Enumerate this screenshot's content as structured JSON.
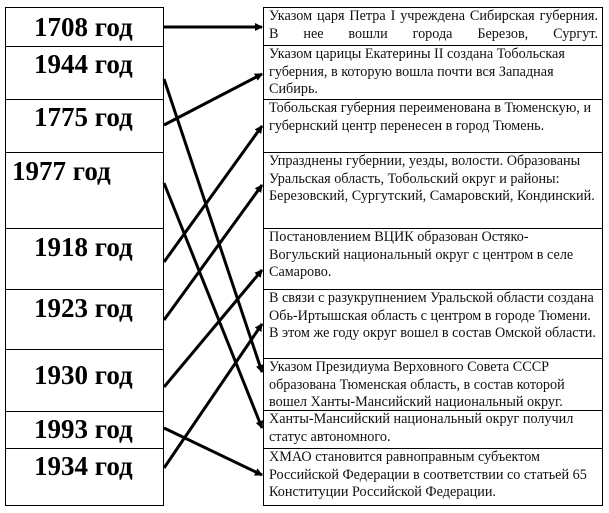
{
  "years": [
    "1708 год",
    "1944 год",
    "1775 год",
    "1977 год",
    "1918 год",
    "1923 год",
    "1930 год",
    "1993 год",
    "1934 год"
  ],
  "events": [
    "Указом царя Петра I учреждена Сибирская губерния. В нее вошли города Березов, Сургут.",
    "Указом царицы Екатерины II создана Тобольская губерния, в которую вошла почти вся Западная Сибирь.",
    "Тобольская губерния переименована в Тюменскую, и губернский центр перенесен в город Тюмень.",
    "Упразднены губернии, уезды, волости. Образованы Уральская область, Тобольский округ и районы: Березовский, Сургутский, Самаровский, Кондинский.",
    "Постановлением ВЦИК образован Остяко-Вогульский национальный округ с центром в селе Самарово.",
    "В связи с разукрупнением Уральской области создана Обь-Иртышская область с центром в городе Тюмени. В этом же году округ вошел в состав Омской области.",
    "Указом Президиума Верховного Совета СССР образована Тюменская область, в состав которой вошел Ханты-Мансийский национальный округ.",
    "Ханты-Мансийский национальный округ получил статус автономного.",
    "ХМАО  становится равноправным субъектом Российской Федерации в соответствии со статьей 65 Конституции Российской Федерации."
  ],
  "connections": [
    [
      0,
      0
    ],
    [
      1,
      6
    ],
    [
      2,
      1
    ],
    [
      3,
      7
    ],
    [
      4,
      2
    ],
    [
      5,
      3
    ],
    [
      6,
      4
    ],
    [
      7,
      8
    ],
    [
      8,
      5
    ]
  ]
}
